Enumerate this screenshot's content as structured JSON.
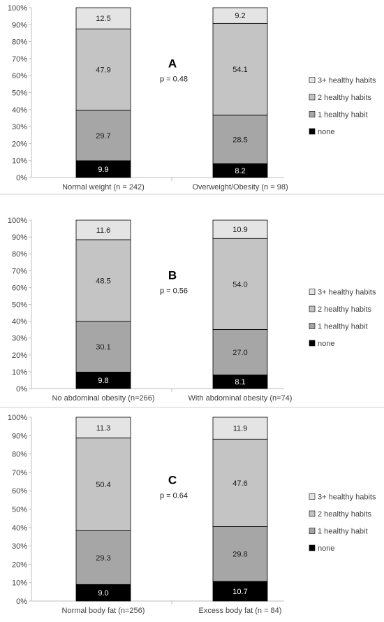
{
  "colors": {
    "none": "#000000",
    "1 healthy habit": "#a6a6a6",
    "2 healthy habits": "#c4c4c4",
    "3+ healthy habits": "#e4e4e4",
    "axis": "#bfbfbf",
    "text": "#404040"
  },
  "chart_data": [
    {
      "type": "bar",
      "stacked": true,
      "percent": true,
      "title": "A",
      "annotation": "p = 0.48",
      "categories": [
        "Normal weight (n = 242)",
        "Overweight/Obesity (n = 98)"
      ],
      "series": [
        {
          "name": "none",
          "values": [
            9.9,
            8.2
          ]
        },
        {
          "name": "1 healthy habit",
          "values": [
            29.7,
            28.5
          ]
        },
        {
          "name": "2 healthy habits",
          "values": [
            47.9,
            54.1
          ]
        },
        {
          "name": "3+ healthy habits",
          "values": [
            12.5,
            9.2
          ]
        }
      ],
      "yticks": [
        "0%",
        "10%",
        "20%",
        "30%",
        "40%",
        "50%",
        "60%",
        "70%",
        "80%",
        "90%",
        "100%"
      ],
      "ylim": [
        0,
        100
      ],
      "legend": [
        "3+ healthy habits",
        "2 healthy habits",
        "1 healthy habit",
        "none"
      ],
      "legend_position": "right",
      "grid": false
    },
    {
      "type": "bar",
      "stacked": true,
      "percent": true,
      "title": "B",
      "annotation": "p = 0.56",
      "categories": [
        "No abdominal obesity (n=266)",
        "With abdominal obesity (n=74)"
      ],
      "series": [
        {
          "name": "none",
          "values": [
            9.8,
            8.1
          ]
        },
        {
          "name": "1 healthy habit",
          "values": [
            30.1,
            27.0
          ]
        },
        {
          "name": "2 healthy habits",
          "values": [
            48.5,
            54.0
          ]
        },
        {
          "name": "3+ healthy habits",
          "values": [
            11.6,
            10.9
          ]
        }
      ],
      "yticks": [
        "0%",
        "10%",
        "20%",
        "30%",
        "40%",
        "50%",
        "60%",
        "70%",
        "80%",
        "90%",
        "100%"
      ],
      "ylim": [
        0,
        100
      ],
      "legend": [
        "3+ healthy habits",
        "2 healthy habits",
        "1 healthy habit",
        "none"
      ],
      "legend_position": "right",
      "grid": false
    },
    {
      "type": "bar",
      "stacked": true,
      "percent": true,
      "title": "C",
      "annotation": "p = 0.64",
      "categories": [
        "Normal body fat (n=256)",
        "Excess body fat (n = 84)"
      ],
      "series": [
        {
          "name": "none",
          "values": [
            9.0,
            10.7
          ]
        },
        {
          "name": "1 healthy habit",
          "values": [
            29.3,
            29.8
          ]
        },
        {
          "name": "2 healthy habits",
          "values": [
            50.4,
            47.6
          ]
        },
        {
          "name": "3+ healthy habits",
          "values": [
            11.3,
            11.9
          ]
        }
      ],
      "yticks": [
        "0%",
        "10%",
        "20%",
        "30%",
        "40%",
        "50%",
        "60%",
        "70%",
        "80%",
        "90%",
        "100%"
      ],
      "ylim": [
        0,
        100
      ],
      "legend": [
        "3+ healthy habits",
        "2 healthy habits",
        "1 healthy habit",
        "none"
      ],
      "legend_position": "right",
      "grid": false
    }
  ]
}
